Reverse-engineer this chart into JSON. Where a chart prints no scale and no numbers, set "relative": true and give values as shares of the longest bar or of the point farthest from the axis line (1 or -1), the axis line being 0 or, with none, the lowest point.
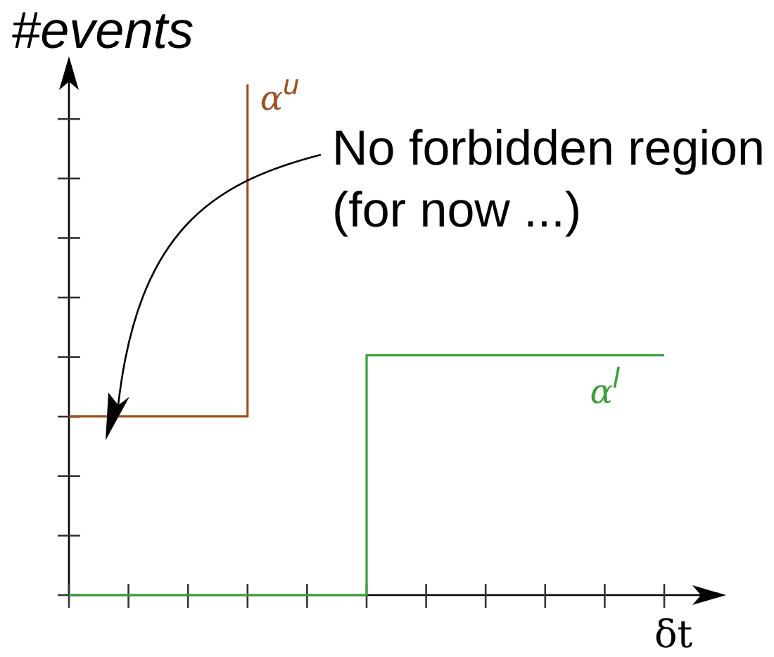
{
  "chart_data": {
    "type": "step",
    "relative": true,
    "xlabel": "δt",
    "ylabel": "#events",
    "categories": [
      null,
      null,
      null,
      null,
      null,
      null,
      null,
      null,
      null,
      null,
      null
    ],
    "series": [
      {
        "name": "α$^{u}$",
        "color": "#a0501e",
        "values": [
          0.35,
          0.35,
          0.35,
          1,
          null,
          null,
          null,
          null,
          null,
          null,
          null
        ]
      },
      {
        "name": "α$^{l}$",
        "color": "#3c9e3c",
        "values": [
          0,
          0,
          0,
          0,
          0,
          0.47,
          0.47,
          0.47,
          0.47,
          0.47,
          0.47
        ]
      }
    ],
    "annotations": [
      "No forbidden region\n(for now ...)"
    ]
  }
}
